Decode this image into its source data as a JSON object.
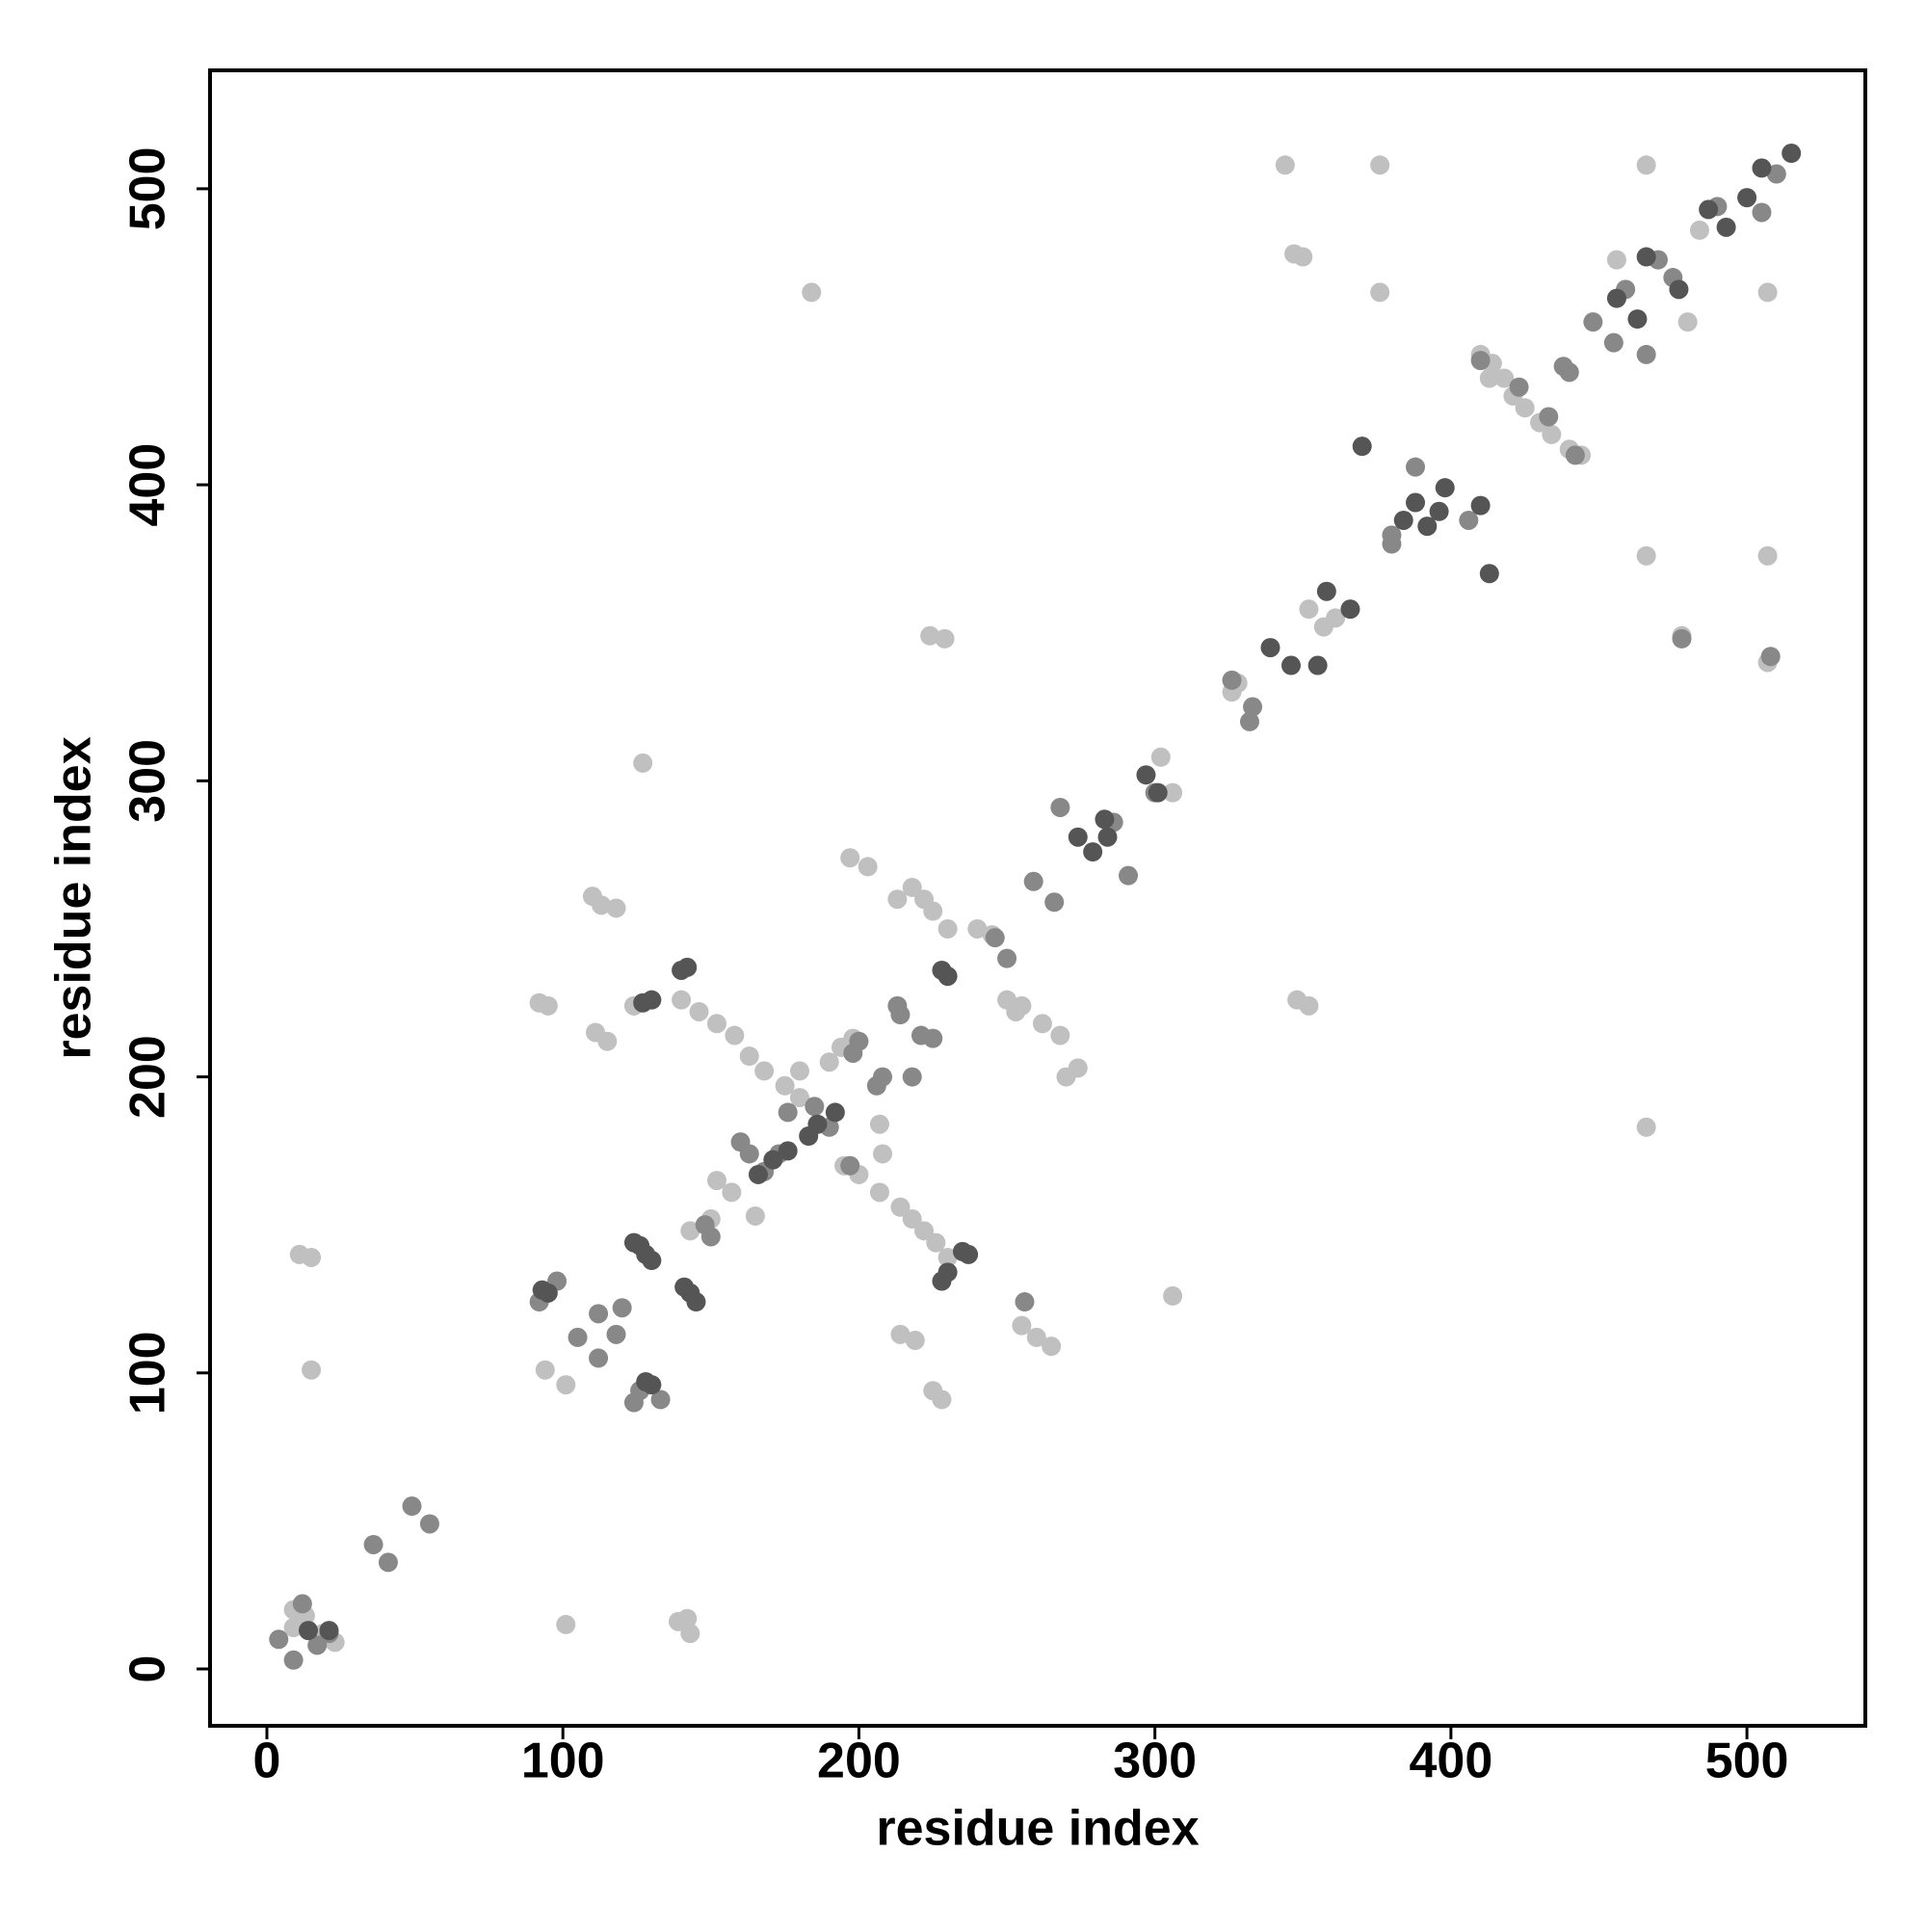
{
  "chart_data": {
    "type": "scatter",
    "xlabel": "residue index",
    "ylabel": "residue index",
    "xlim": [
      -19.2,
      540
    ],
    "ylim": [
      -19.2,
      540
    ],
    "xticks": [
      0,
      100,
      200,
      300,
      400,
      500
    ],
    "yticks": [
      0,
      100,
      200,
      300,
      400,
      500
    ],
    "series": [
      {
        "color": "#c0c0c0",
        "x": [
          11,
          15,
          15,
          9,
          13,
          19,
          23,
          139,
          143,
          142,
          92,
          95,
          101,
          94,
          101,
          110,
          113,
          118,
          111,
          115,
          124,
          127,
          184,
          306,
          344,
          347,
          350,
          376,
          376,
          466,
          466,
          466,
          507,
          507,
          456,
          478,
          507,
          224,
          229,
          225,
          228,
          255,
          260,
          265,
          348,
          352,
          214,
          219,
          197,
          203,
          270,
          274,
          218,
          222,
          225,
          230,
          213,
          140,
          146,
          152,
          158,
          163,
          168,
          180,
          190,
          194,
          198,
          207,
          208,
          200,
          195,
          207,
          214,
          218,
          222,
          226,
          230,
          175,
          180,
          152,
          157,
          165,
          150,
          143,
          250,
          255,
          262,
          268,
          245,
          240,
          253,
          410,
          414,
          418,
          421,
          425,
          430,
          434,
          440,
          444,
          326,
          328,
          357,
          361,
          352,
          413,
          302,
          306,
          484,
          480,
          9
        ],
        "values": [
          140,
          139,
          101,
          20,
          18,
          12,
          9,
          16,
          12,
          17,
          225,
          224,
          15,
          101,
          96,
          261,
          258,
          257,
          215,
          212,
          224,
          306,
          465,
          126,
          508,
          478,
          477,
          508,
          465,
          508,
          376,
          183,
          376,
          465,
          476,
          349,
          340,
          349,
          348,
          94,
          91,
          116,
          112,
          109,
          226,
          224,
          113,
          111,
          274,
          271,
          200,
          203,
          264,
          260,
          256,
          250,
          260,
          226,
          222,
          218,
          214,
          207,
          202,
          202,
          205,
          210,
          213,
          184,
          174,
          167,
          170,
          161,
          156,
          152,
          148,
          144,
          139,
          197,
          193,
          165,
          161,
          153,
          152,
          148,
          226,
          224,
          218,
          214,
          248,
          250,
          222,
          444,
          441,
          436,
          430,
          426,
          421,
          417,
          412,
          410,
          330,
          333,
          352,
          355,
          358,
          436,
          308,
          296,
          486,
          455,
          14
        ]
      },
      {
        "color": "#888888",
        "x": [
          4,
          9,
          12,
          17,
          21,
          36,
          41,
          49,
          55,
          92,
          98,
          105,
          112,
          112,
          118,
          120,
          124,
          126,
          133,
          148,
          150,
          160,
          163,
          168,
          173,
          176,
          200,
          208,
          214,
          213,
          221,
          225,
          246,
          250,
          256,
          259,
          266,
          268,
          291,
          286,
          300,
          333,
          332,
          326,
          380,
          388,
          406,
          380,
          423,
          433,
          438,
          440,
          410,
          442,
          448,
          455,
          459,
          466,
          470,
          475,
          490,
          505,
          510,
          508,
          478,
          218,
          198,
          190,
          185,
          197,
          206
        ],
        "values": [
          10,
          3,
          22,
          8,
          12,
          42,
          36,
          55,
          49,
          124,
          131,
          112,
          105,
          120,
          113,
          122,
          90,
          94,
          91,
          150,
          146,
          178,
          174,
          168,
          174,
          188,
          212,
          200,
          221,
          224,
          214,
          213,
          247,
          240,
          124,
          266,
          259,
          291,
          268,
          286,
          296,
          325,
          320,
          334,
          380,
          406,
          388,
          383,
          433,
          423,
          440,
          438,
          442,
          410,
          455,
          448,
          466,
          444,
          476,
          470,
          494,
          492,
          505,
          342,
          348,
          200,
          208,
          183,
          190,
          170,
          197
        ]
      },
      {
        "color": "#555555",
        "x": [
          130,
          128,
          126,
          124,
          128,
          130,
          142,
          140,
          130,
          127,
          143,
          145,
          141,
          93,
          95,
          228,
          230,
          237,
          235,
          192,
          186,
          183,
          176,
          171,
          166,
          228,
          230,
          274,
          279,
          284,
          283,
          297,
          301,
          355,
          358,
          366,
          339,
          346,
          384,
          388,
          392,
          398,
          396,
          370,
          413,
          410,
          456,
          463,
          466,
          477,
          487,
          493,
          505,
          515,
          500,
          14,
          21
        ],
        "values": [
          96,
          97,
          143,
          144,
          140,
          138,
          237,
          236,
          226,
          225,
          127,
          124,
          129,
          128,
          127,
          131,
          134,
          140,
          141,
          188,
          184,
          180,
          175,
          172,
          167,
          236,
          234,
          281,
          276,
          281,
          287,
          302,
          296,
          339,
          364,
          358,
          345,
          339,
          388,
          394,
          386,
          399,
          391,
          413,
          370,
          393,
          463,
          456,
          477,
          466,
          493,
          487,
          507,
          512,
          497,
          13,
          13
        ]
      }
    ]
  }
}
